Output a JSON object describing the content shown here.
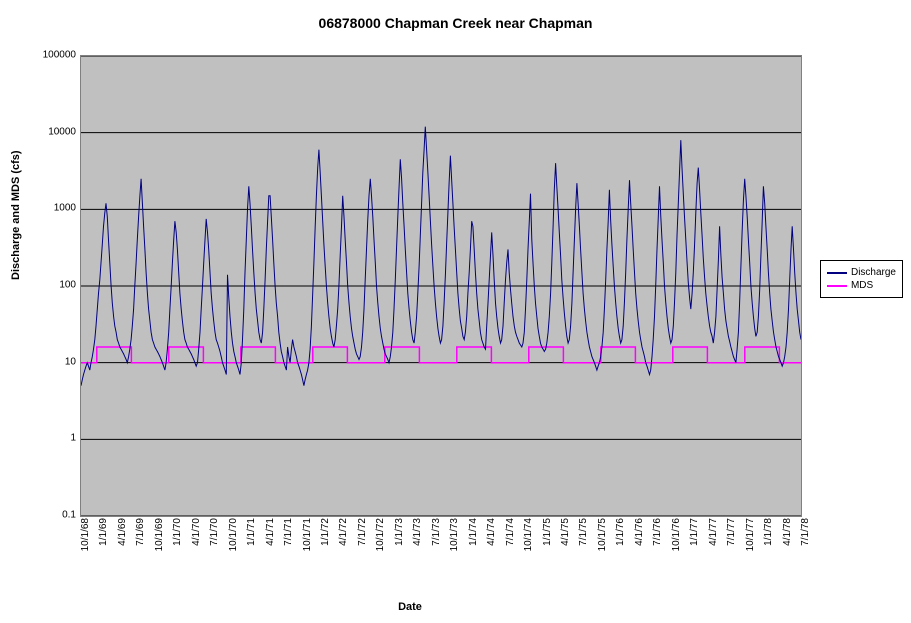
{
  "chart": {
    "title": "06878000 Chapman Creek near Chapman",
    "type": "line",
    "xlabel": "Date",
    "ylabel": "Discharge and MDS (cfs)",
    "title_fontsize": 14,
    "label_fontsize": 11,
    "tick_fontsize": 10,
    "background_color": "#ffffff",
    "plot_background_color": "#c0c0c0",
    "grid_color": "#000000",
    "border_color": "#808080",
    "yscale": "log",
    "ylim": [
      0.1,
      100000
    ],
    "ytick_values": [
      0.1,
      1,
      10,
      100,
      1000,
      10000,
      100000
    ],
    "ytick_labels": [
      "0.1",
      "1",
      "10",
      "100",
      "1000",
      "10000",
      "100000"
    ],
    "xtick_labels": [
      "10/1/68",
      "1/1/69",
      "4/1/69",
      "7/1/69",
      "10/1/69",
      "1/1/70",
      "4/1/70",
      "7/1/70",
      "10/1/70",
      "1/1/71",
      "4/1/71",
      "7/1/71",
      "10/1/71",
      "1/1/72",
      "4/1/72",
      "7/1/72",
      "10/1/72",
      "1/1/73",
      "4/1/73",
      "7/1/73",
      "10/1/73",
      "1/1/74",
      "4/1/74",
      "7/1/74",
      "10/1/74",
      "1/1/75",
      "4/1/75",
      "7/1/75",
      "10/1/75",
      "1/1/76",
      "4/1/76",
      "7/1/76",
      "10/1/76",
      "1/1/77",
      "4/1/77",
      "7/1/77",
      "10/1/77",
      "1/1/78",
      "4/1/78",
      "7/1/78"
    ],
    "legend_position": "right",
    "series": [
      {
        "name": "Discharge",
        "color": "#000080",
        "line_width": 1,
        "data": [
          5,
          6,
          7,
          8,
          9,
          10,
          9,
          8,
          10,
          12,
          15,
          20,
          30,
          50,
          80,
          120,
          200,
          350,
          600,
          900,
          1200,
          800,
          400,
          200,
          100,
          60,
          40,
          30,
          25,
          20,
          18,
          16,
          15,
          14,
          13,
          12,
          11,
          10,
          12,
          15,
          20,
          30,
          50,
          100,
          200,
          400,
          800,
          1500,
          2500,
          1200,
          600,
          300,
          150,
          80,
          50,
          35,
          25,
          20,
          18,
          16,
          15,
          14,
          13,
          12,
          11,
          10,
          9,
          8,
          10,
          15,
          25,
          50,
          100,
          200,
          400,
          700,
          500,
          300,
          150,
          80,
          50,
          35,
          25,
          20,
          18,
          16,
          15,
          14,
          13,
          12,
          11,
          10,
          9,
          10,
          15,
          25,
          50,
          100,
          200,
          400,
          750,
          500,
          300,
          150,
          80,
          50,
          35,
          25,
          20,
          18,
          16,
          14,
          12,
          10,
          9,
          8,
          7,
          140,
          70,
          40,
          25,
          18,
          14,
          12,
          10,
          9,
          8,
          7,
          10,
          20,
          50,
          150,
          400,
          1000,
          2000,
          1200,
          600,
          300,
          150,
          80,
          50,
          35,
          25,
          20,
          18,
          25,
          50,
          120,
          300,
          700,
          1500,
          1500,
          800,
          400,
          200,
          100,
          60,
          40,
          25,
          18,
          14,
          12,
          10,
          9,
          8,
          16,
          12,
          10,
          15,
          20,
          16,
          14,
          12,
          10,
          9,
          8,
          7,
          6,
          5,
          6,
          7,
          8,
          10,
          15,
          30,
          80,
          200,
          600,
          1500,
          3500,
          6000,
          3000,
          1500,
          700,
          350,
          180,
          100,
          60,
          40,
          28,
          22,
          18,
          16,
          20,
          30,
          50,
          100,
          250,
          600,
          1500,
          800,
          400,
          200,
          100,
          60,
          40,
          28,
          22,
          18,
          15,
          13,
          12,
          11,
          12,
          16,
          25,
          50,
          120,
          300,
          700,
          1500,
          2500,
          1500,
          800,
          400,
          200,
          100,
          60,
          40,
          28,
          22,
          18,
          15,
          13,
          12,
          11,
          10,
          12,
          16,
          25,
          50,
          120,
          300,
          800,
          2000,
          4500,
          2500,
          1200,
          600,
          300,
          150,
          80,
          50,
          35,
          25,
          20,
          18,
          25,
          40,
          80,
          180,
          450,
          1200,
          3000,
          6000,
          12000,
          6000,
          3000,
          1500,
          700,
          350,
          180,
          100,
          60,
          40,
          28,
          22,
          18,
          20,
          30,
          60,
          140,
          350,
          900,
          2200,
          5000,
          2500,
          1200,
          600,
          300,
          150,
          80,
          50,
          35,
          28,
          22,
          20,
          25,
          40,
          80,
          150,
          300,
          700,
          600,
          300,
          150,
          80,
          50,
          35,
          25,
          20,
          18,
          16,
          15,
          30,
          60,
          120,
          250,
          500,
          250,
          120,
          60,
          40,
          28,
          22,
          18,
          20,
          30,
          60,
          120,
          200,
          300,
          150,
          90,
          60,
          40,
          30,
          25,
          22,
          20,
          18,
          17,
          16,
          18,
          25,
          50,
          120,
          300,
          700,
          1600,
          400,
          200,
          100,
          60,
          40,
          28,
          22,
          18,
          16,
          15,
          14,
          15,
          18,
          25,
          40,
          80,
          200,
          600,
          1800,
          4000,
          2000,
          1000,
          500,
          250,
          120,
          70,
          45,
          30,
          22,
          18,
          20,
          30,
          60,
          150,
          400,
          1000,
          2200,
          1200,
          600,
          300,
          150,
          80,
          50,
          35,
          25,
          20,
          16,
          14,
          12,
          11,
          10,
          9,
          8,
          9,
          10,
          12,
          16,
          25,
          50,
          120,
          300,
          700,
          1800,
          700,
          350,
          180,
          100,
          60,
          40,
          28,
          22,
          18,
          20,
          30,
          60,
          150,
          400,
          1000,
          2400,
          1200,
          600,
          300,
          150,
          80,
          50,
          35,
          25,
          20,
          16,
          14,
          12,
          10,
          9,
          8,
          7,
          8,
          12,
          20,
          40,
          100,
          300,
          800,
          2000,
          800,
          400,
          200,
          100,
          60,
          40,
          28,
          22,
          18,
          20,
          30,
          60,
          150,
          450,
          1200,
          3000,
          8000,
          3500,
          1600,
          800,
          400,
          200,
          110,
          70,
          50,
          80,
          150,
          350,
          900,
          2200,
          3500,
          1800,
          900,
          450,
          230,
          130,
          80,
          55,
          40,
          30,
          25,
          22,
          18,
          25,
          40,
          90,
          220,
          600,
          250,
          130,
          80,
          50,
          35,
          28,
          22,
          19,
          16,
          14,
          12,
          11,
          10,
          15,
          25,
          60,
          180,
          500,
          1300,
          2500,
          1500,
          800,
          400,
          200,
          100,
          60,
          40,
          28,
          22,
          25,
          40,
          90,
          250,
          700,
          2000,
          1200,
          600,
          300,
          150,
          80,
          50,
          35,
          25,
          20,
          16,
          14,
          12,
          11,
          10,
          9,
          10,
          12,
          16,
          25,
          50,
          120,
          300,
          600,
          300,
          150,
          80,
          50,
          35,
          25,
          20
        ]
      },
      {
        "name": "MDS",
        "color": "#ff00ff",
        "line_width": 1.5,
        "high_value": 16,
        "low_value": 10,
        "pattern": "step"
      }
    ]
  }
}
